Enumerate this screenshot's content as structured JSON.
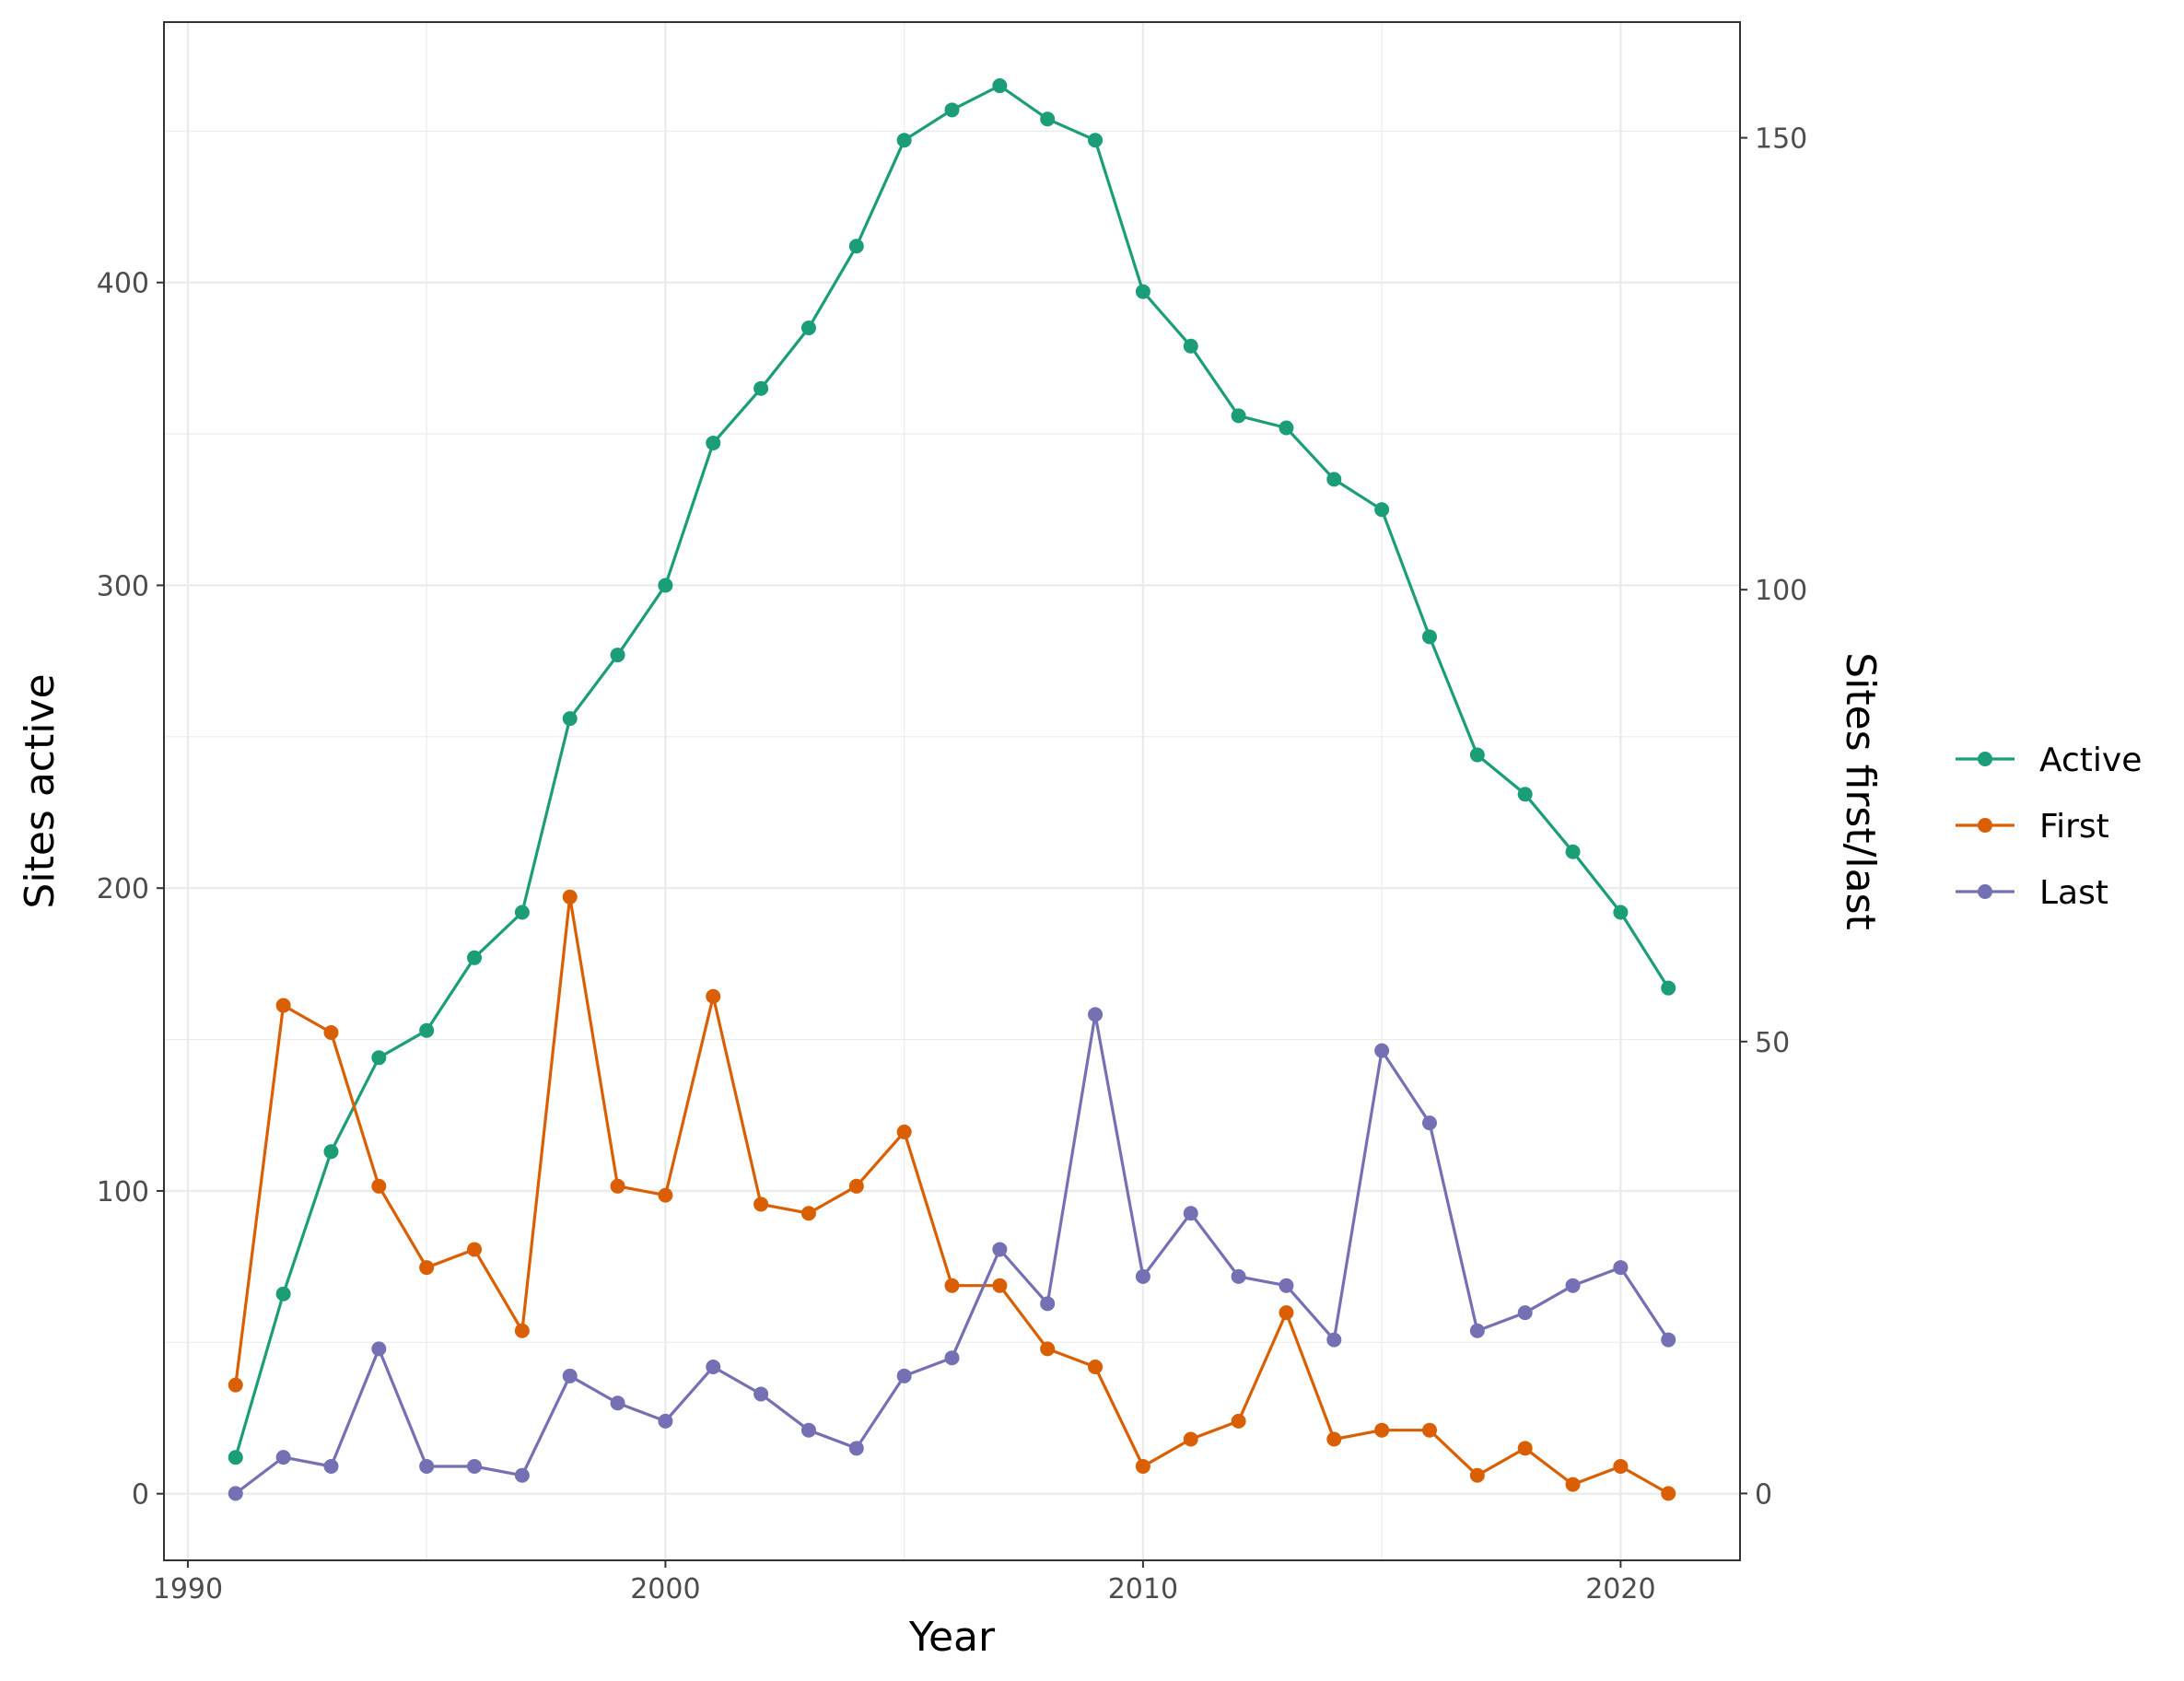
{
  "chart_data": {
    "type": "line",
    "title": "",
    "xlabel": "Year",
    "ylabel": "Sites active",
    "y2label": "Sites first/last",
    "xlim": [
      1989.5,
      2022.5
    ],
    "ylim": [
      -22,
      486
    ],
    "y2lim": [
      -7.4,
      162.8
    ],
    "x_ticks": [
      1990,
      2000,
      2010,
      2020
    ],
    "y_ticks": [
      0,
      100,
      200,
      300,
      400
    ],
    "y2_ticks": [
      0,
      50,
      100,
      150
    ],
    "grid": true,
    "legend_position": "right",
    "x": [
      1991,
      1992,
      1993,
      1994,
      1995,
      1996,
      1997,
      1998,
      1999,
      2000,
      2001,
      2002,
      2003,
      2004,
      2005,
      2006,
      2007,
      2008,
      2009,
      2010,
      2011,
      2012,
      2013,
      2014,
      2015,
      2016,
      2017,
      2018,
      2019,
      2020,
      2021
    ],
    "series": [
      {
        "name": "Active",
        "axis": "left",
        "color": "#1b9e77",
        "values": [
          12,
          66,
          113,
          144,
          153,
          177,
          192,
          256,
          277,
          300,
          347,
          365,
          385,
          412,
          447,
          457,
          465,
          454,
          447,
          397,
          379,
          356,
          352,
          335,
          325,
          283,
          244,
          231,
          212,
          192,
          167
        ]
      },
      {
        "name": "First",
        "axis": "right",
        "color": "#d95f02",
        "values": [
          12,
          54,
          51,
          34,
          25,
          27,
          18,
          66,
          34,
          33,
          55,
          32,
          31,
          34,
          40,
          23,
          23,
          16,
          14,
          3,
          6,
          8,
          20,
          6,
          7,
          7,
          2,
          5,
          1,
          3,
          0
        ]
      },
      {
        "name": "Last",
        "axis": "right",
        "color": "#7570b3",
        "values": [
          0,
          4,
          3,
          16,
          3,
          3,
          2,
          13,
          10,
          8,
          14,
          11,
          7,
          5,
          13,
          15,
          27,
          21,
          53,
          24,
          31,
          24,
          23,
          17,
          49,
          41,
          18,
          20,
          23,
          25,
          17
        ]
      }
    ]
  }
}
